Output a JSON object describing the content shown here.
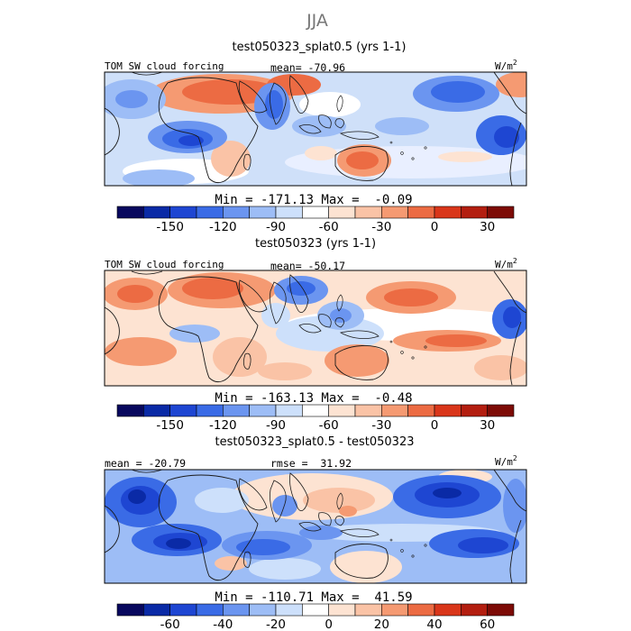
{
  "figure": {
    "season_title": "JJA",
    "units": "W/m",
    "units_exp": "2"
  },
  "panels": [
    {
      "id": "p1",
      "title": "test050323_splat0.5 (yrs 1-1)",
      "left_label": "TOM SW cloud forcing",
      "center_label": "mean= -70.96",
      "stats": "Min = -171.13 Max =  -0.09",
      "ticks": [
        "-150",
        "-120",
        "-90",
        "-60",
        "-30",
        "0",
        "30"
      ]
    },
    {
      "id": "p2",
      "title": "test050323 (yrs 1-1)",
      "left_label": "TOM SW cloud forcing",
      "center_label": "mean= -50.17",
      "stats": "Min = -163.13 Max =  -0.48",
      "ticks": [
        "-150",
        "-120",
        "-90",
        "-60",
        "-30",
        "0",
        "30"
      ]
    },
    {
      "id": "p3",
      "title": "test050323_splat0.5 - test050323",
      "left_label": "mean = -20.79",
      "center_label": "rmse =  31.92",
      "stats": "Min = -110.71 Max =  41.59",
      "ticks": [
        "-60",
        "-40",
        "-20",
        "0",
        "20",
        "40",
        "60"
      ]
    }
  ],
  "colorbar": {
    "colors": [
      "#08085e",
      "#0a2aa6",
      "#1e46d2",
      "#3a6be6",
      "#6b95f0",
      "#9dbdf6",
      "#cde0fb",
      "#ffffff",
      "#fde3d2",
      "#fac3a6",
      "#f59a72",
      "#ec6b43",
      "#d9361a",
      "#b31e10",
      "#7d0b06"
    ]
  }
}
